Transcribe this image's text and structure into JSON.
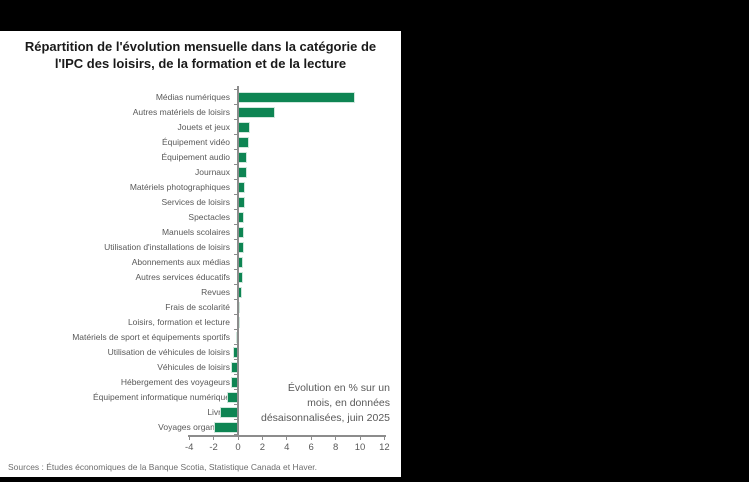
{
  "chart": {
    "title_line1": "Répartition de l'évolution mensuelle dans la catégorie de",
    "title_line2": "l'IPC des loisirs, de la formation et de la lecture",
    "annotation_lines": [
      "Évolution en % sur un",
      "mois, en données",
      "désaisonnalisées, juin 2025"
    ]
  },
  "chart_data": {
    "type": "bar",
    "orientation": "horizontal",
    "title": "Répartition de l'évolution mensuelle dans la catégorie de l'IPC des loisirs, de la formation et de la lecture",
    "categories": [
      "Médias numériques",
      "Autres matériels de loisirs",
      "Jouets et jeux",
      "Équipement vidéo",
      "Équipement audio",
      "Journaux",
      "Matériels photographiques",
      "Services de loisirs",
      "Spectacles",
      "Manuels scolaires",
      "Utilisation d'installations de loisirs",
      "Abonnements aux médias",
      "Autres services éducatifs",
      "Revues",
      "Frais de scolarité",
      "Loisirs, formation et lecture",
      "Matériels de sport et équipements sportifs",
      "Utilisation de véhicules de loisirs",
      "Véhicules de loisirs",
      "Hébergement des voyageurs",
      "Équipement informatique numérique",
      "Livres",
      "Voyages organisés"
    ],
    "values": [
      9.6,
      3.0,
      1.0,
      0.9,
      0.7,
      0.7,
      0.6,
      0.6,
      0.5,
      0.5,
      0.5,
      0.4,
      0.4,
      0.3,
      0.2,
      0.1,
      -0.2,
      -0.4,
      -0.6,
      -0.6,
      -0.9,
      -1.5,
      -2.0
    ],
    "xlabel": "",
    "ylabel": "",
    "xlim": [
      -4,
      12
    ],
    "x_ticks": [
      -4,
      -2,
      0,
      2,
      4,
      6,
      8,
      10,
      12
    ],
    "annotation": "Évolution en % sur un mois, en données désaisonnalisées, juin 2025",
    "unit": "% m/m",
    "bar_color": "#0E8553",
    "legend": "none",
    "grid": "off"
  },
  "footer": {
    "text": "Sources : Études économiques de la Banque Scotia, Statistique Canada et Haver."
  }
}
